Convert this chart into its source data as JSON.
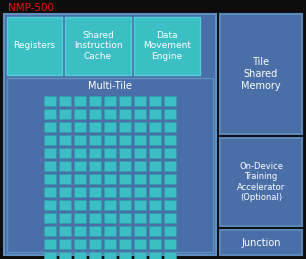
{
  "bg_color": "#0d0d0d",
  "outer_fc": "#4a6ea8",
  "outer_ec": "#6090c0",
  "top_block_fc": "#3bbfc4",
  "top_block_ec": "#50d0d8",
  "multi_tile_fc": "#4a6ea8",
  "multi_tile_ec": "#6090c0",
  "small_tile_fc": "#3bbfc4",
  "small_tile_ec": "#2aa0a8",
  "right_fc": "#4a6ea8",
  "right_ec": "#5a88b8",
  "title_text": "NMP-500",
  "title_color": "#ee1111",
  "text_color": "#ffffff",
  "registers_label": "Registers",
  "shared_instr_label": "Shared\nInstruction\nCache",
  "data_movement_label": "Data\nMovement\nEngine",
  "multi_tile_label": "Multi-Tile",
  "tile_shared_label": "Tile\nShared\nMemory",
  "on_device_label": "On-Device\nTraining\nAccelerator\n(Optional)",
  "junction_label": "Junction",
  "fig_w": 3.06,
  "fig_h": 2.59,
  "dpi": 100
}
